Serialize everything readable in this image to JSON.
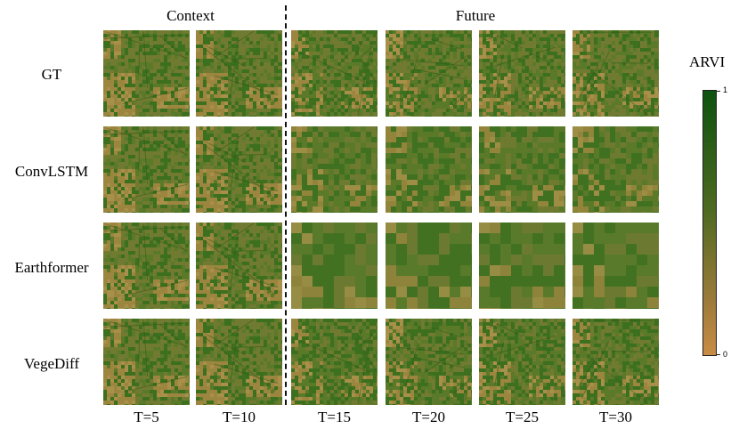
{
  "headers": {
    "context": "Context",
    "future": "Future"
  },
  "rows": [
    "GT",
    "ConvLSTM",
    "Earthformer",
    "VegeDiff"
  ],
  "columns": [
    "T=5",
    "T=10",
    "T=15",
    "T=20",
    "T=25",
    "T=30"
  ],
  "colorbar": {
    "title": "ARVI",
    "max_label": "1",
    "min_label": "0",
    "colors": {
      "high": "#0c520f",
      "mid": "#4f6a21",
      "low": "#c98c45"
    }
  },
  "colors": {
    "vegetation_dark": "#2f6b1a",
    "vegetation_mid": "#5a7a2a",
    "soil": "#b88a48",
    "soil_light": "#c99a58"
  }
}
